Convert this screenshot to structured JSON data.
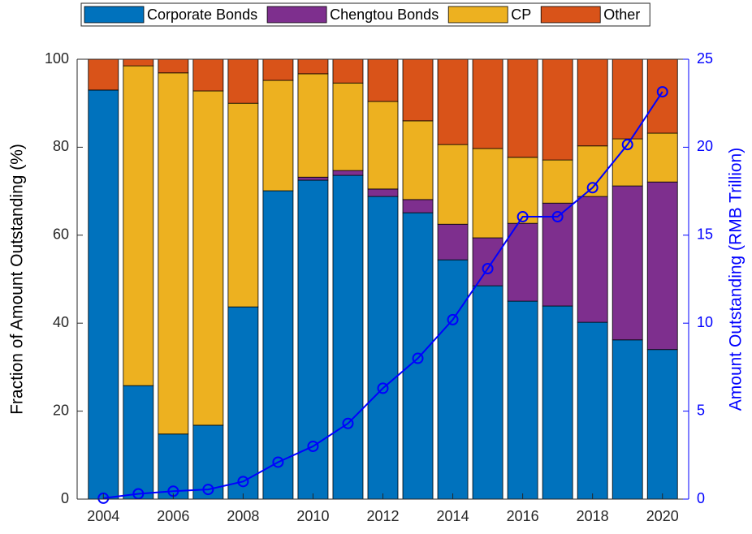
{
  "chart_data": {
    "type": "stacked-bar-line",
    "x": [
      2004,
      2005,
      2006,
      2007,
      2008,
      2009,
      2010,
      2011,
      2012,
      2013,
      2014,
      2015,
      2016,
      2017,
      2018,
      2019,
      2020
    ],
    "xlim": [
      2003.25,
      2020.75
    ],
    "xticks": [
      2004,
      2006,
      2008,
      2010,
      2012,
      2014,
      2016,
      2018,
      2020
    ],
    "ylabel": "Fraction of Amount Outstanding (%)",
    "ylim": [
      0,
      100
    ],
    "yticks": [
      0,
      20,
      40,
      60,
      80,
      100
    ],
    "y2label": "Amount Outstanding (RMB Trillion)",
    "y2lim": [
      0,
      25
    ],
    "y2ticks": [
      0,
      5,
      10,
      15,
      20,
      25
    ],
    "legend": "top",
    "series": [
      {
        "name": "Corporate Bonds",
        "color": "#0072bd",
        "values": [
          93,
          25.8,
          14.8,
          16.8,
          43.7,
          70.1,
          72.5,
          73.6,
          68.8,
          65.1,
          54.4,
          48.5,
          45,
          43.9,
          40.2,
          36.2,
          34
        ]
      },
      {
        "name": "Chengtou Bonds",
        "color": "#7e2f8e",
        "values": [
          0,
          0,
          0,
          0,
          0,
          0,
          0.7,
          1.1,
          1.7,
          3,
          8.1,
          10.9,
          17.7,
          23.4,
          28.6,
          35,
          38.1
        ]
      },
      {
        "name": "CP",
        "color": "#edb120",
        "values": [
          0,
          72.7,
          82.1,
          76,
          46.3,
          25.1,
          23.5,
          19.9,
          19.9,
          17.9,
          18.1,
          20.3,
          15,
          9.8,
          11.5,
          10.7,
          11.1
        ]
      },
      {
        "name": "Other",
        "color": "#d95319",
        "values": [
          7,
          1.5,
          3.1,
          7.2,
          10,
          4.8,
          3.3,
          5.4,
          9.6,
          14,
          19.4,
          20.3,
          22.3,
          22.9,
          19.7,
          18.1,
          16.8
        ]
      },
      {
        "type": "line",
        "axis": "y2",
        "color": "#0000ff",
        "values": [
          0.05,
          0.3,
          0.45,
          0.55,
          1.0,
          2.1,
          3.0,
          4.3,
          6.3,
          8.0,
          10.2,
          13.1,
          16.05,
          16.05,
          17.7,
          20.15,
          23.15
        ]
      }
    ]
  }
}
